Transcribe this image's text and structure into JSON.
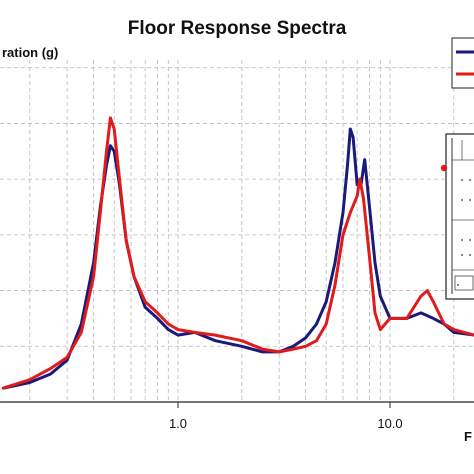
{
  "chart_data": {
    "type": "line",
    "title": "Floor Response Spectra",
    "ylabel": "ration (g)",
    "xlabel": "F",
    "x_scale": "log",
    "xlim": [
      0.15,
      30
    ],
    "ylim": [
      0,
      1.4
    ],
    "x_tick_labels": [
      {
        "value": 1.0,
        "label": "1.0"
      },
      {
        "value": 10.0,
        "label": "10.0"
      }
    ],
    "grid": "dashed",
    "legend": "top-right (cropped)",
    "series": [
      {
        "color": "#1a1a7a",
        "points": [
          [
            0.15,
            0.05
          ],
          [
            0.2,
            0.07
          ],
          [
            0.25,
            0.1
          ],
          [
            0.3,
            0.15
          ],
          [
            0.35,
            0.28
          ],
          [
            0.4,
            0.5
          ],
          [
            0.43,
            0.7
          ],
          [
            0.46,
            0.85
          ],
          [
            0.48,
            0.92
          ],
          [
            0.5,
            0.9
          ],
          [
            0.53,
            0.78
          ],
          [
            0.57,
            0.58
          ],
          [
            0.62,
            0.45
          ],
          [
            0.7,
            0.34
          ],
          [
            0.8,
            0.3
          ],
          [
            0.9,
            0.26
          ],
          [
            1.0,
            0.24
          ],
          [
            1.2,
            0.25
          ],
          [
            1.5,
            0.22
          ],
          [
            2.0,
            0.2
          ],
          [
            2.5,
            0.18
          ],
          [
            3.0,
            0.18
          ],
          [
            3.5,
            0.2
          ],
          [
            4.0,
            0.23
          ],
          [
            4.5,
            0.28
          ],
          [
            5.0,
            0.36
          ],
          [
            5.5,
            0.5
          ],
          [
            6.0,
            0.68
          ],
          [
            6.3,
            0.85
          ],
          [
            6.5,
            0.98
          ],
          [
            6.7,
            0.95
          ],
          [
            7.0,
            0.78
          ],
          [
            7.3,
            0.78
          ],
          [
            7.6,
            0.87
          ],
          [
            8.0,
            0.7
          ],
          [
            8.5,
            0.5
          ],
          [
            9.0,
            0.38
          ],
          [
            10.0,
            0.3
          ],
          [
            12.0,
            0.3
          ],
          [
            14.0,
            0.32
          ],
          [
            16.0,
            0.3
          ],
          [
            18.0,
            0.28
          ],
          [
            20.0,
            0.25
          ],
          [
            25.0,
            0.24
          ],
          [
            30.0,
            0.24
          ]
        ]
      },
      {
        "color": "#e01b1b",
        "points": [
          [
            0.15,
            0.05
          ],
          [
            0.2,
            0.08
          ],
          [
            0.25,
            0.12
          ],
          [
            0.3,
            0.16
          ],
          [
            0.35,
            0.25
          ],
          [
            0.4,
            0.45
          ],
          [
            0.43,
            0.68
          ],
          [
            0.46,
            0.9
          ],
          [
            0.48,
            1.02
          ],
          [
            0.5,
            0.98
          ],
          [
            0.53,
            0.8
          ],
          [
            0.57,
            0.58
          ],
          [
            0.62,
            0.45
          ],
          [
            0.7,
            0.36
          ],
          [
            0.8,
            0.32
          ],
          [
            0.9,
            0.28
          ],
          [
            1.0,
            0.26
          ],
          [
            1.2,
            0.25
          ],
          [
            1.5,
            0.24
          ],
          [
            2.0,
            0.22
          ],
          [
            2.5,
            0.19
          ],
          [
            3.0,
            0.18
          ],
          [
            3.5,
            0.19
          ],
          [
            4.0,
            0.2
          ],
          [
            4.5,
            0.22
          ],
          [
            5.0,
            0.28
          ],
          [
            5.5,
            0.42
          ],
          [
            6.0,
            0.6
          ],
          [
            6.5,
            0.68
          ],
          [
            7.0,
            0.74
          ],
          [
            7.2,
            0.8
          ],
          [
            7.5,
            0.73
          ],
          [
            8.0,
            0.52
          ],
          [
            8.5,
            0.32
          ],
          [
            9.0,
            0.26
          ],
          [
            10.0,
            0.3
          ],
          [
            12.0,
            0.3
          ],
          [
            14.0,
            0.38
          ],
          [
            15.0,
            0.4
          ],
          [
            16.0,
            0.36
          ],
          [
            18.0,
            0.28
          ],
          [
            20.0,
            0.26
          ],
          [
            25.0,
            0.24
          ],
          [
            30.0,
            0.24
          ]
        ]
      }
    ]
  }
}
